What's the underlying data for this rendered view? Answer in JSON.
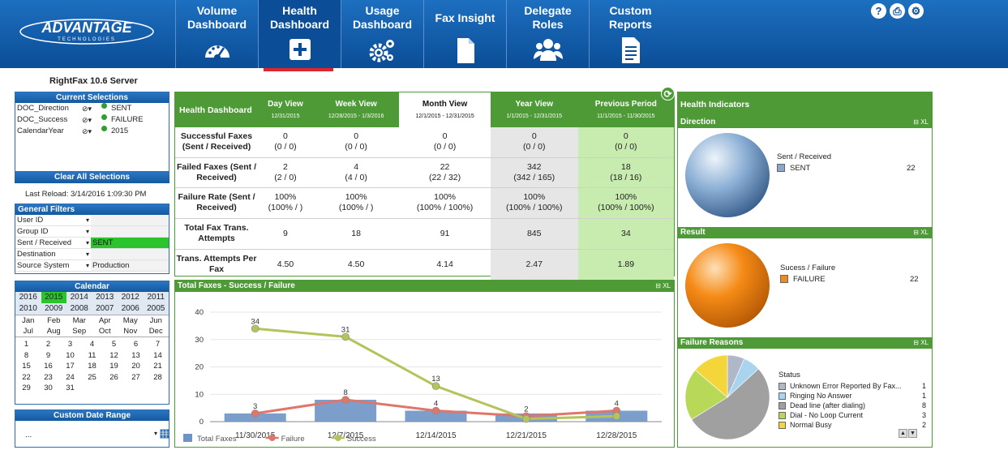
{
  "nav": {
    "logo_main": "ADVANTAGE",
    "logo_sub": "TECHNOLOGIES",
    "items": [
      {
        "label": "Volume Dashboard",
        "icon": "gauge-icon"
      },
      {
        "label": "Health Dashboard",
        "icon": "plus-icon"
      },
      {
        "label": "Usage Dashboard",
        "icon": "gears-icon"
      },
      {
        "label": "Fax Insight",
        "icon": "document-icon"
      },
      {
        "label": "Delegate Roles",
        "icon": "users-icon"
      },
      {
        "label": "Custom Reports",
        "icon": "report-icon"
      }
    ],
    "help": "?",
    "print": "⎙",
    "settings": "⚙"
  },
  "server_title": "RightFax 10.6 Server",
  "current_selections": {
    "title": "Current Selections",
    "rows": [
      {
        "field": "DOC_Direction",
        "value": "SENT"
      },
      {
        "field": "DOC_Success",
        "value": "FAILURE"
      },
      {
        "field": "CalendarYear",
        "value": "2015"
      }
    ],
    "clear_label": "Clear All Selections"
  },
  "last_reload": "Last Reload: 3/14/2016 1:09:30 PM",
  "general_filters": {
    "title": "General Filters",
    "rows": [
      {
        "label": "User ID",
        "value": ""
      },
      {
        "label": "Group ID",
        "value": ""
      },
      {
        "label": "Sent / Received",
        "value": "SENT"
      },
      {
        "label": "Destination",
        "value": ""
      },
      {
        "label": "Source System",
        "value": "Production"
      }
    ]
  },
  "calendar": {
    "title": "Calendar",
    "years": [
      "2016",
      "2015",
      "2014",
      "2013",
      "2012",
      "2011",
      "2010",
      "2009",
      "2008",
      "2007",
      "2006",
      "2005"
    ],
    "selected_year": "2015",
    "months": [
      "Jan",
      "Feb",
      "Mar",
      "Apr",
      "May",
      "Jun",
      "Jul",
      "Aug",
      "Sep",
      "Oct",
      "Nov",
      "Dec"
    ],
    "days": [
      "1",
      "2",
      "3",
      "4",
      "5",
      "6",
      "7",
      "8",
      "9",
      "10",
      "11",
      "12",
      "13",
      "14",
      "15",
      "16",
      "17",
      "18",
      "19",
      "20",
      "21",
      "22",
      "23",
      "24",
      "25",
      "26",
      "27",
      "28",
      "29",
      "30",
      "31"
    ]
  },
  "custom_range": {
    "title": "Custom Date Range",
    "value": "..."
  },
  "health": {
    "title": "Health Dashboard",
    "columns": [
      {
        "label": "Day View",
        "range": "12/31/2015"
      },
      {
        "label": "Week View",
        "range": "12/28/2015 - 1/3/2016"
      },
      {
        "label": "Month View",
        "range": "12/1/2015 - 12/31/2015"
      },
      {
        "label": "Year View",
        "range": "1/1/2015 - 12/31/2015"
      },
      {
        "label": "Previous Period",
        "range": "11/1/2015 - 11/30/2015"
      }
    ],
    "rows": [
      {
        "label": "Successful Faxes (Sent / Received)",
        "cells": [
          "0\n(0 / 0)",
          "0\n(0 / 0)",
          "0\n(0 / 0)",
          "0\n(0 / 0)",
          "0\n(0 / 0)"
        ]
      },
      {
        "label": "Failed Faxes (Sent / Received)",
        "cells": [
          "2\n(2 / 0)",
          "4\n(4 / 0)",
          "22\n(22 / 32)",
          "342\n(342 / 165)",
          "18\n(18 / 16)"
        ]
      },
      {
        "label": "Failure Rate (Sent / Received)",
        "cells": [
          "100%\n(100% / )",
          "100%\n(100% / )",
          "100%\n(100% / 100%)",
          "100%\n(100% / 100%)",
          "100%\n(100% / 100%)"
        ]
      },
      {
        "label": "Total Fax Trans. Attempts",
        "cells": [
          "9",
          "18",
          "91",
          "845",
          "34"
        ]
      },
      {
        "label": "Trans. Attempts Per Fax",
        "cells": [
          "4.50",
          "4.50",
          "4.14",
          "2.47",
          "1.89"
        ]
      }
    ]
  },
  "chart_panel": {
    "title": "Total Faxes - Success / Failure",
    "minis": "⊟ XL"
  },
  "chart_data": {
    "type": "bar",
    "categories": [
      "11/30/2015",
      "12/7/2015",
      "12/14/2015",
      "12/21/2015",
      "12/28/2015"
    ],
    "ylim": [
      0,
      40
    ],
    "yticks": [
      "0",
      "10",
      "20",
      "30",
      "40"
    ],
    "series": [
      {
        "name": "Total Faxes",
        "type": "bar",
        "values": [
          3,
          8,
          4,
          3,
          4
        ],
        "color": "#6e93c4"
      },
      {
        "name": "Failure",
        "type": "line",
        "values": [
          3,
          8,
          4,
          2,
          4
        ],
        "color": "#e0766a"
      },
      {
        "name": "Success",
        "type": "line",
        "values": [
          34,
          31,
          13,
          1,
          2
        ],
        "color": "#b4c45a"
      }
    ],
    "data_labels": [
      {
        "series": "Success",
        "labels": [
          "34",
          "31",
          "13",
          "",
          ""
        ]
      },
      {
        "series": "Failure",
        "labels": [
          "3",
          "8",
          "4",
          "2",
          "4"
        ]
      }
    ]
  },
  "indicators": {
    "title": "Health Indicators",
    "direction": {
      "title": "Direction",
      "legend_title": "Sent / Received",
      "item": "SENT",
      "value": "22",
      "color": "#8aa6c8"
    },
    "result": {
      "title": "Result",
      "legend_title": "Sucess / Failure",
      "item": "FAILURE",
      "value": "22",
      "color": "#f08a1c"
    },
    "failure": {
      "title": "Failure Reasons",
      "legend_title": "Status",
      "items": [
        {
          "label": "Unknown Error Reported By Fax...",
          "value": "1",
          "color": "#b0b8c8",
          "share": 0.066
        },
        {
          "label": "Ringing No Answer",
          "value": "1",
          "color": "#a8d4f0",
          "share": 0.066
        },
        {
          "label": "Dead line (after dialing)",
          "value": "8",
          "color": "#a0a0a0",
          "share": 0.53
        },
        {
          "label": "Dial - No Loop Current",
          "value": "3",
          "color": "#b8d858",
          "share": 0.2
        },
        {
          "label": "Normal Busy",
          "value": "2",
          "color": "#f5d63a",
          "share": 0.138
        }
      ]
    },
    "minis": "⊟ XL"
  }
}
